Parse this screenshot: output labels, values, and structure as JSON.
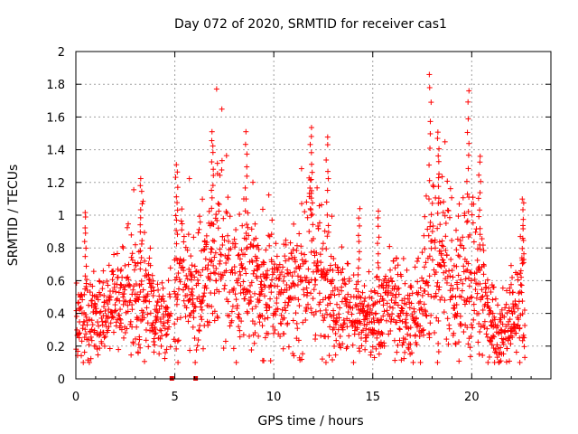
{
  "chart_data": {
    "type": "scatter",
    "title": "Day 072 of 2020, SRMTID for receiver cas1",
    "xlabel": "GPS time / hours",
    "ylabel": "SRMTID / TECUs",
    "xlim": [
      0,
      24
    ],
    "ylim": [
      0,
      2
    ],
    "xticks": [
      0,
      5,
      10,
      15,
      20
    ],
    "yticks": [
      0,
      0.2,
      0.4,
      0.6,
      0.8,
      1,
      1.2,
      1.4,
      1.6,
      1.8,
      2
    ],
    "xtick_labels": [
      "0",
      "5",
      "10",
      "15",
      "20"
    ],
    "ytick_labels": [
      "0",
      "0.2",
      "0.4",
      "0.6",
      "0.8",
      "1",
      "1.2",
      "1.4",
      "1.6",
      "1.8",
      "2"
    ],
    "grid": true,
    "marker": "+",
    "color": "#ff0000",
    "data_gaps_marked_at_zero": [
      4.85,
      6.05
    ],
    "envelope": {
      "x": [
        0,
        0.5,
        1,
        1.5,
        2,
        2.5,
        3,
        3.5,
        4,
        4.5,
        5,
        5.5,
        6,
        6.5,
        7,
        7.5,
        8,
        8.5,
        9,
        9.5,
        10,
        10.5,
        11,
        11.5,
        12,
        12.5,
        13,
        13.5,
        14,
        14.5,
        15,
        15.5,
        16,
        16.5,
        17,
        17.5,
        18,
        18.5,
        19,
        19.5,
        20,
        20.5,
        21,
        21.5,
        22,
        22.5
      ],
      "mid": [
        0.42,
        0.38,
        0.34,
        0.4,
        0.46,
        0.52,
        0.56,
        0.5,
        0.4,
        0.36,
        0.55,
        0.62,
        0.5,
        0.6,
        0.8,
        0.75,
        0.6,
        0.56,
        0.58,
        0.56,
        0.54,
        0.52,
        0.54,
        0.6,
        0.72,
        0.58,
        0.5,
        0.42,
        0.38,
        0.36,
        0.34,
        0.38,
        0.5,
        0.42,
        0.3,
        0.4,
        0.66,
        0.72,
        0.62,
        0.62,
        0.68,
        0.55,
        0.32,
        0.26,
        0.38,
        0.5
      ],
      "spread": [
        0.18,
        0.16,
        0.14,
        0.16,
        0.18,
        0.2,
        0.22,
        0.22,
        0.16,
        0.14,
        0.26,
        0.24,
        0.22,
        0.28,
        0.3,
        0.3,
        0.26,
        0.24,
        0.26,
        0.24,
        0.22,
        0.22,
        0.22,
        0.26,
        0.3,
        0.26,
        0.22,
        0.18,
        0.16,
        0.16,
        0.14,
        0.16,
        0.2,
        0.18,
        0.14,
        0.2,
        0.34,
        0.3,
        0.26,
        0.3,
        0.3,
        0.22,
        0.14,
        0.12,
        0.18,
        0.22
      ],
      "peaks": [
        [
          0.5,
          1.03
        ],
        [
          3.3,
          1.23
        ],
        [
          5.1,
          1.32
        ],
        [
          6.9,
          1.51
        ],
        [
          8.6,
          1.51
        ],
        [
          11.9,
          1.55
        ],
        [
          12.7,
          1.49
        ],
        [
          14.3,
          1.04
        ],
        [
          15.3,
          1.03
        ],
        [
          17.9,
          1.87
        ],
        [
          18.3,
          1.52
        ],
        [
          19.8,
          1.76
        ],
        [
          20.4,
          1.37
        ],
        [
          22.6,
          1.1
        ]
      ],
      "gap": [
        4.8,
        4.95
      ]
    }
  }
}
